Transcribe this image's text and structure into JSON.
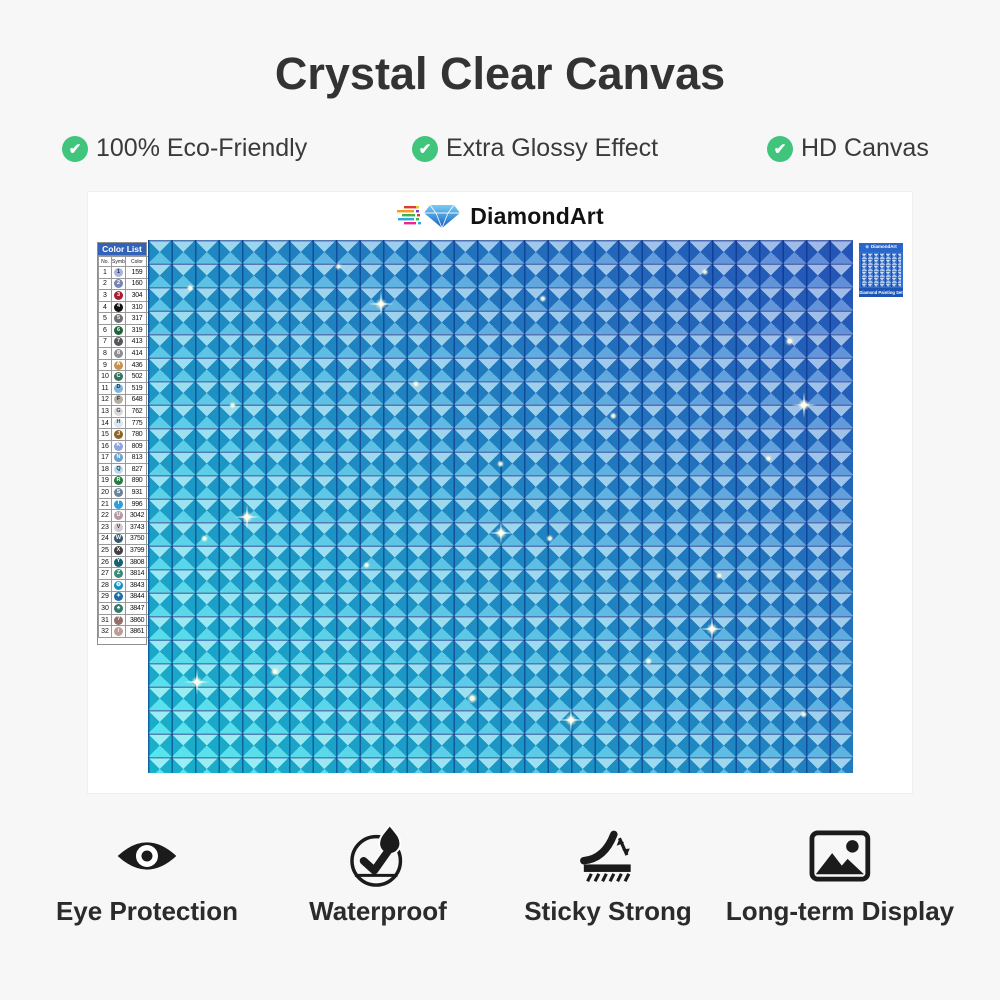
{
  "header": {
    "title": "Crystal Clear Canvas",
    "features": [
      "100% Eco-Friendly",
      "Extra Glossy Effect",
      "HD Canvas"
    ],
    "check_color": "#41c57d"
  },
  "product": {
    "brand": "DiamondArt",
    "color_list": {
      "title": "Color List",
      "columns": [
        "No.",
        "Symbol",
        "Color"
      ],
      "rows": [
        {
          "no": "1",
          "symbol": "1",
          "code": "159",
          "bg": "#aab4d4",
          "fg": "#1a2a6a"
        },
        {
          "no": "2",
          "symbol": "2",
          "code": "160",
          "bg": "#7886b4",
          "fg": "#ffffff"
        },
        {
          "no": "3",
          "symbol": "3",
          "code": "304",
          "bg": "#a61e33",
          "fg": "#ffffff"
        },
        {
          "no": "4",
          "symbol": "4",
          "code": "310",
          "bg": "#111111",
          "fg": "#ffffff"
        },
        {
          "no": "5",
          "symbol": "5",
          "code": "317",
          "bg": "#6e6e73",
          "fg": "#ffffff"
        },
        {
          "no": "6",
          "symbol": "6",
          "code": "319",
          "bg": "#23623d",
          "fg": "#ffffff"
        },
        {
          "no": "7",
          "symbol": "7",
          "code": "413",
          "bg": "#57575c",
          "fg": "#ffffff"
        },
        {
          "no": "8",
          "symbol": "8",
          "code": "414",
          "bg": "#8d8d92",
          "fg": "#ffffff"
        },
        {
          "no": "9",
          "symbol": "A",
          "code": "436",
          "bg": "#c6914f",
          "fg": "#ffffff"
        },
        {
          "no": "10",
          "symbol": "C",
          "code": "502",
          "bg": "#35725c",
          "fg": "#ffffff"
        },
        {
          "no": "11",
          "symbol": "D",
          "code": "519",
          "bg": "#7fb5d8",
          "fg": "#10304a"
        },
        {
          "no": "12",
          "symbol": "F",
          "code": "648",
          "bg": "#b3aea0",
          "fg": "#333333"
        },
        {
          "no": "13",
          "symbol": "G",
          "code": "762",
          "bg": "#d9d9dc",
          "fg": "#444444"
        },
        {
          "no": "14",
          "symbol": "H",
          "code": "775",
          "bg": "#d8e7f2",
          "fg": "#444444"
        },
        {
          "no": "15",
          "symbol": "J",
          "code": "780",
          "bg": "#8f6526",
          "fg": "#ffffff"
        },
        {
          "no": "16",
          "symbol": "K",
          "code": "809",
          "bg": "#8fa6dc",
          "fg": "#ffffff"
        },
        {
          "no": "17",
          "symbol": "N",
          "code": "813",
          "bg": "#6b9fd0",
          "fg": "#ffffff"
        },
        {
          "no": "18",
          "symbol": "Q",
          "code": "827",
          "bg": "#b8d8ec",
          "fg": "#223344"
        },
        {
          "no": "19",
          "symbol": "R",
          "code": "890",
          "bg": "#2a7a44",
          "fg": "#ffffff"
        },
        {
          "no": "20",
          "symbol": "S",
          "code": "931",
          "bg": "#69839c",
          "fg": "#ffffff"
        },
        {
          "no": "21",
          "symbol": "T",
          "code": "996",
          "bg": "#2f9fd8",
          "fg": "#ffffff"
        },
        {
          "no": "22",
          "symbol": "U",
          "code": "3042",
          "bg": "#b49aa4",
          "fg": "#ffffff"
        },
        {
          "no": "23",
          "symbol": "V",
          "code": "3743",
          "bg": "#d4cad2",
          "fg": "#444444"
        },
        {
          "no": "24",
          "symbol": "W",
          "code": "3750",
          "bg": "#38576c",
          "fg": "#ffffff"
        },
        {
          "no": "25",
          "symbol": "X",
          "code": "3799",
          "bg": "#414141",
          "fg": "#ffffff"
        },
        {
          "no": "26",
          "symbol": "Y",
          "code": "3808",
          "bg": "#14616d",
          "fg": "#ffffff"
        },
        {
          "no": "27",
          "symbol": "Z",
          "code": "3814",
          "bg": "#3c8a78",
          "fg": "#ffffff"
        },
        {
          "no": "28",
          "symbol": "❂",
          "code": "3843",
          "bg": "#1490c8",
          "fg": "#ffffff"
        },
        {
          "no": "29",
          "symbol": "✦",
          "code": "3844",
          "bg": "#1a6ea8",
          "fg": "#ffffff"
        },
        {
          "no": "30",
          "symbol": "♣",
          "code": "3847",
          "bg": "#2f7a68",
          "fg": "#ffffff"
        },
        {
          "no": "31",
          "symbol": "?",
          "code": "3860",
          "bg": "#94706a",
          "fg": "#ffffff"
        },
        {
          "no": "32",
          "symbol": "/",
          "code": "3861",
          "bg": "#bd9e95",
          "fg": "#ffffff"
        }
      ]
    },
    "corner_label": {
      "brand": "DiamondArt",
      "caption": "Diamond Painting Set"
    },
    "canvas_colors": {
      "gradient_from": "#1edee7",
      "gradient_mid": "#27a6da",
      "gradient_to": "#2e62ca"
    }
  },
  "bottom_features": [
    {
      "label": "Eye Protection",
      "icon": "eye-icon"
    },
    {
      "label": "Waterproof",
      "icon": "waterproof-icon"
    },
    {
      "label": "Sticky Strong",
      "icon": "sticky-strong-icon"
    },
    {
      "label": "Long-term Display",
      "icon": "long-term-display-icon"
    }
  ]
}
